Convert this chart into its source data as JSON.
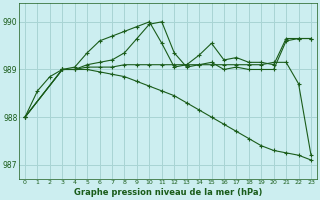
{
  "title": "Graphe pression niveau de la mer (hPa)",
  "background_color": "#cceef0",
  "grid_color": "#a8d4d4",
  "line_color": "#1a5c1a",
  "xlim": [
    -0.5,
    23.5
  ],
  "ylim": [
    986.7,
    990.4
  ],
  "yticks": [
    987,
    988,
    989,
    990
  ],
  "xticks": [
    0,
    1,
    2,
    3,
    4,
    5,
    6,
    7,
    8,
    9,
    10,
    11,
    12,
    13,
    14,
    15,
    16,
    17,
    18,
    19,
    20,
    21,
    22,
    23
  ],
  "series": [
    {
      "x": [
        0,
        1,
        2,
        3,
        4,
        5,
        6,
        7,
        8,
        9,
        10,
        11,
        12,
        13,
        14,
        15,
        16,
        17,
        18,
        19,
        20,
        21,
        22,
        23
      ],
      "y": [
        988.0,
        988.55,
        988.85,
        989.0,
        989.0,
        989.0,
        988.95,
        988.9,
        988.85,
        988.75,
        988.65,
        988.55,
        988.45,
        988.3,
        988.15,
        988.0,
        987.85,
        987.7,
        987.55,
        987.4,
        987.3,
        987.25,
        987.2,
        987.1
      ]
    },
    {
      "x": [
        0,
        3,
        4,
        5,
        6,
        7,
        8,
        9,
        10,
        11,
        12,
        13,
        14,
        15,
        16,
        17,
        18,
        19,
        20,
        21,
        22,
        23
      ],
      "y": [
        988.0,
        989.0,
        989.05,
        989.35,
        989.6,
        989.7,
        989.8,
        989.9,
        990.0,
        989.55,
        989.05,
        989.1,
        989.3,
        989.55,
        989.2,
        989.25,
        989.15,
        989.15,
        989.1,
        989.65,
        989.65,
        989.65
      ]
    },
    {
      "x": [
        0,
        3,
        4,
        5,
        6,
        7,
        8,
        9,
        10,
        11,
        12,
        13,
        14,
        15,
        16,
        17,
        18,
        19,
        20,
        21,
        22,
        23
      ],
      "y": [
        988.0,
        989.0,
        989.0,
        989.1,
        989.15,
        989.2,
        989.35,
        989.65,
        989.95,
        990.0,
        989.35,
        989.05,
        989.1,
        989.15,
        989.0,
        989.05,
        989.0,
        989.0,
        989.0,
        989.6,
        989.65,
        989.65
      ]
    },
    {
      "x": [
        0,
        3,
        4,
        5,
        6,
        7,
        8,
        9,
        10,
        11,
        12,
        13,
        14,
        15,
        16,
        17,
        18,
        19,
        20,
        21,
        22,
        23
      ],
      "y": [
        988.0,
        989.0,
        989.0,
        989.05,
        989.05,
        989.05,
        989.1,
        989.1,
        989.1,
        989.1,
        989.1,
        989.1,
        989.1,
        989.1,
        989.1,
        989.1,
        989.1,
        989.1,
        989.15,
        989.15,
        988.7,
        987.2
      ]
    }
  ]
}
